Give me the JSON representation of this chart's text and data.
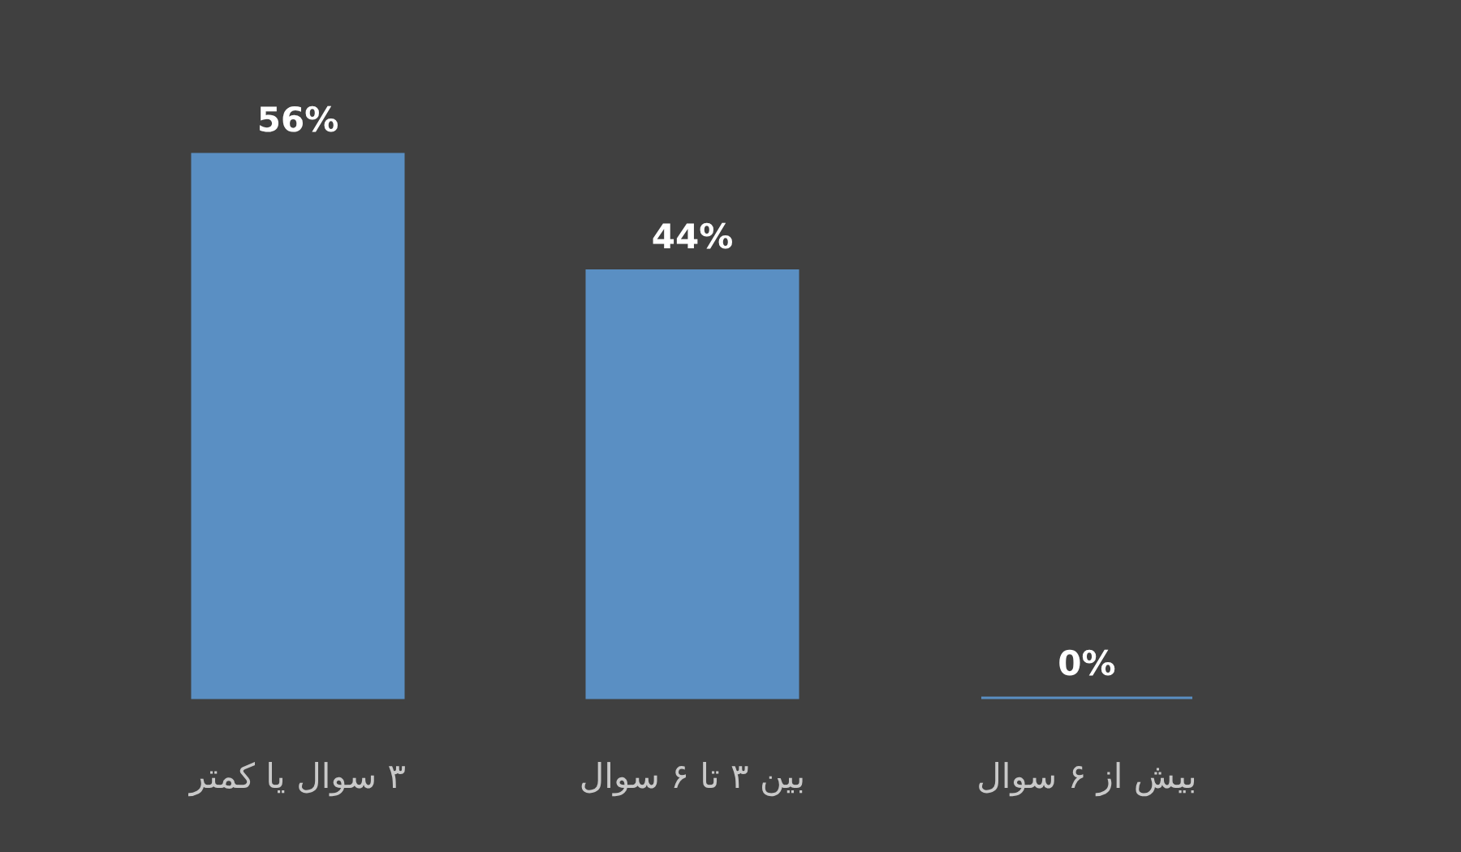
{
  "chart_data": {
    "type": "bar",
    "categories": [
      "۳ سوال یا کمتر",
      "بین ۳ تا ۶ سوال",
      "بیش از ۶ سوال"
    ],
    "values": [
      56,
      44,
      0
    ],
    "value_labels": [
      "56%",
      "44%",
      "0%"
    ],
    "color": "#5a8fc3"
  }
}
